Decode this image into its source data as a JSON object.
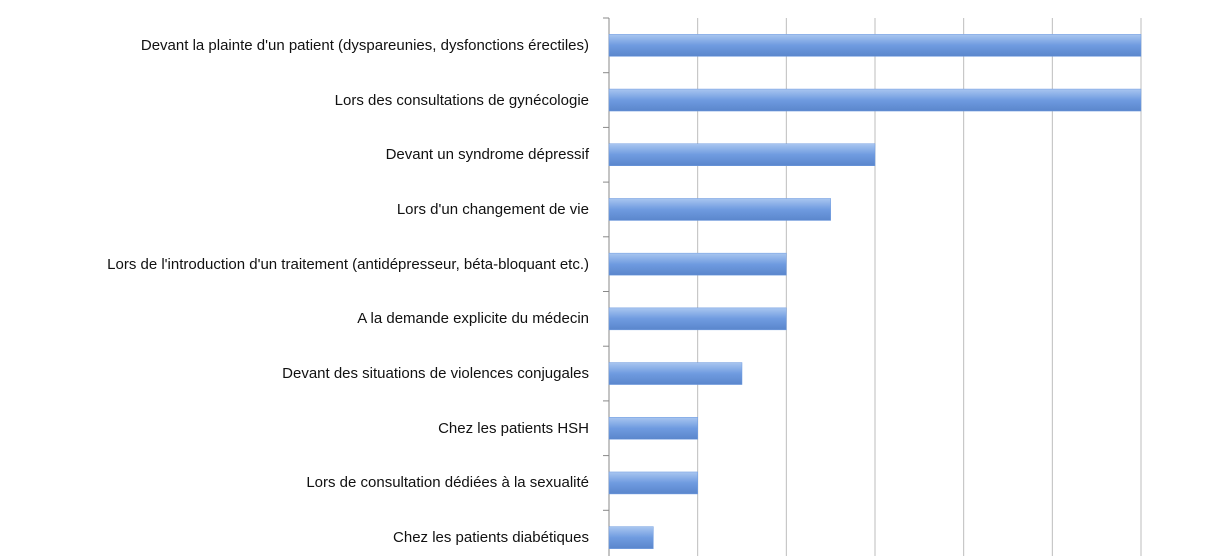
{
  "chart_data": {
    "type": "bar",
    "orientation": "horizontal",
    "categories": [
      "Devant la plainte d'un patient (dyspareunies, dysfonctions érectiles)",
      "Lors des consultations de gynécologie",
      "Devant un syndrome dépressif",
      "Lors d'un changement de vie",
      "Lors de l'introduction d'un traitement (antidépresseur, béta-bloquant etc.)",
      "A la demande explicite du médecin",
      "Devant des situations de violences conjugales",
      "Chez les patients HSH",
      "Lors de consultation dédiées à la sexualité",
      "Chez les patients diabétiques"
    ],
    "values": [
      12,
      12,
      6,
      5,
      4,
      4,
      3,
      2,
      2,
      1
    ],
    "color": "#6f9be0",
    "xlim": [
      0,
      12
    ],
    "xticks": [
      0,
      2,
      4,
      6,
      8,
      10,
      12
    ],
    "grid": true
  }
}
